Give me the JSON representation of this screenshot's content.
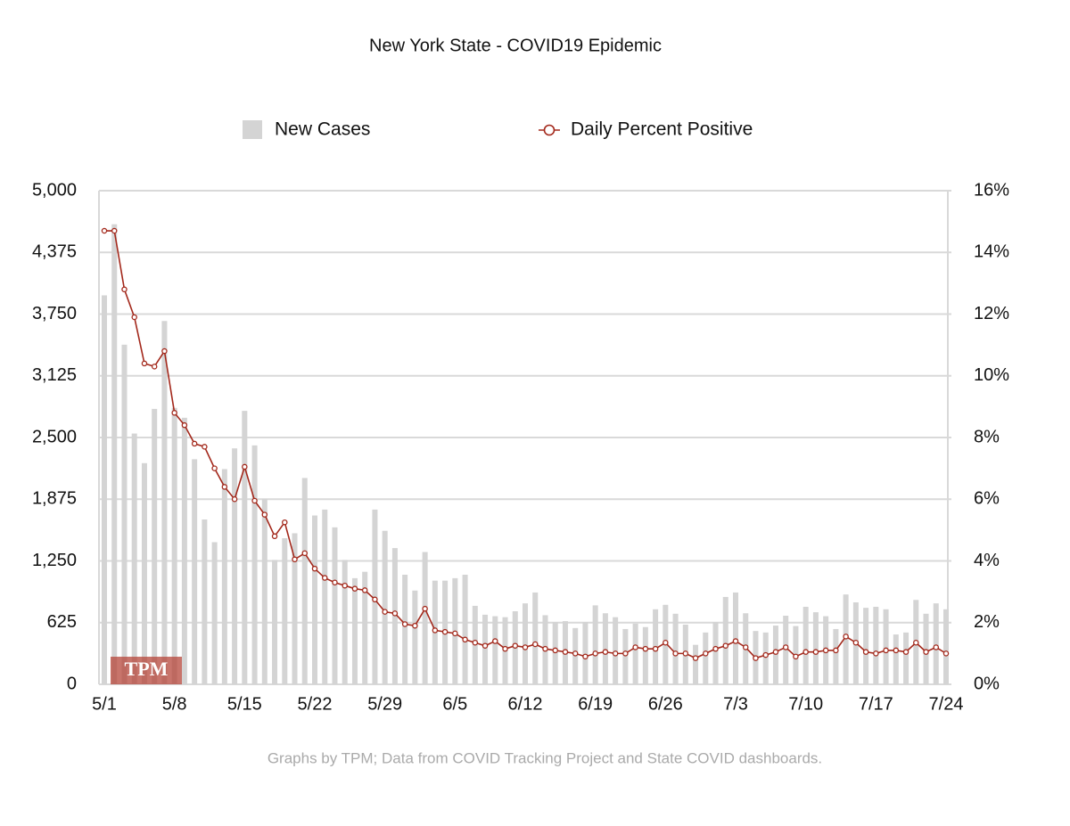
{
  "chart_data": {
    "type": "bar_line",
    "title": "New York State - COVID19 Epidemic",
    "note": "Graphs by TPM; Data from COVID Tracking Project and State COVID dashboards.",
    "watermark": "TPM",
    "legend": "top",
    "grid": true,
    "categories": [
      "5/1",
      null,
      null,
      null,
      null,
      null,
      null,
      "5/8",
      null,
      null,
      null,
      null,
      null,
      null,
      "5/15",
      null,
      null,
      null,
      null,
      null,
      null,
      "5/22",
      null,
      null,
      null,
      null,
      null,
      null,
      "5/29",
      null,
      null,
      null,
      null,
      null,
      null,
      "6/5",
      null,
      null,
      null,
      null,
      null,
      null,
      "6/12",
      null,
      null,
      null,
      null,
      null,
      null,
      "6/19",
      null,
      null,
      null,
      null,
      null,
      null,
      "6/26",
      null,
      null,
      null,
      null,
      null,
      null,
      "7/3",
      null,
      null,
      null,
      null,
      null,
      null,
      "7/10",
      null,
      null,
      null,
      null,
      null,
      null,
      "7/17",
      null,
      null,
      null,
      null,
      null,
      null,
      "7/24"
    ],
    "series": [
      {
        "name": "New Cases",
        "type": "bar",
        "color": "#d4d4d4",
        "axis": "y",
        "values": [
          3940,
          4660,
          3440,
          2540,
          2240,
          2790,
          3680,
          2800,
          2700,
          2280,
          1670,
          1440,
          2180,
          2390,
          2770,
          2420,
          1880,
          1260,
          1480,
          1530,
          2090,
          1710,
          1770,
          1590,
          1260,
          1075,
          1140,
          1770,
          1555,
          1380,
          1110,
          950,
          1340,
          1050,
          1050,
          1075,
          1110,
          795,
          705,
          690,
          680,
          740,
          820,
          930,
          700,
          630,
          640,
          570,
          630,
          800,
          720,
          680,
          560,
          615,
          580,
          760,
          805,
          715,
          605,
          400,
          525,
          630,
          885,
          930,
          720,
          540,
          525,
          595,
          695,
          590,
          785,
          730,
          690,
          560,
          910,
          830,
          775,
          785,
          760,
          505,
          525,
          855,
          715,
          820,
          760
        ]
      },
      {
        "name": "Daily Percent Positive",
        "type": "line",
        "color": "#a3281b",
        "axis": "y2",
        "values": [
          14.7,
          14.7,
          12.8,
          11.9,
          10.4,
          10.3,
          10.8,
          8.8,
          8.4,
          7.8,
          7.7,
          7.0,
          6.4,
          6.0,
          7.05,
          5.95,
          5.5,
          4.8,
          5.25,
          4.05,
          4.25,
          3.75,
          3.45,
          3.3,
          3.2,
          3.1,
          3.05,
          2.75,
          2.35,
          2.3,
          1.95,
          1.9,
          2.45,
          1.75,
          1.7,
          1.65,
          1.45,
          1.35,
          1.25,
          1.4,
          1.15,
          1.25,
          1.2,
          1.3,
          1.15,
          1.1,
          1.05,
          1.0,
          0.9,
          1.0,
          1.05,
          1.0,
          1.0,
          1.2,
          1.15,
          1.15,
          1.35,
          1.0,
          1.0,
          0.85,
          1.0,
          1.15,
          1.25,
          1.4,
          1.2,
          0.85,
          0.95,
          1.05,
          1.2,
          0.9,
          1.05,
          1.05,
          1.1,
          1.1,
          1.55,
          1.35,
          1.05,
          1.0,
          1.1,
          1.1,
          1.05,
          1.35,
          1.05,
          1.2,
          1.0
        ]
      }
    ],
    "ylim": [
      0,
      5000
    ],
    "yticks": [
      0,
      625,
      {
        "value": 1250,
        "label": "1,250"
      },
      {
        "value": 1875,
        "label": "1,875"
      },
      {
        "value": 2500,
        "label": "2,500"
      },
      {
        "value": 3125,
        "label": "3,125"
      },
      {
        "value": 3750,
        "label": "3,750"
      },
      {
        "value": 4375,
        "label": "4,375"
      },
      {
        "value": 5000,
        "label": "5,000"
      }
    ],
    "y2lim": [
      0,
      16
    ],
    "y2ticks": [
      {
        "value": 0,
        "label": "0%"
      },
      {
        "value": 2,
        "label": "2%"
      },
      {
        "value": 4,
        "label": "4%"
      },
      {
        "value": 6,
        "label": "6%"
      },
      {
        "value": 8,
        "label": "8%"
      },
      {
        "value": 10,
        "label": "10%"
      },
      {
        "value": 12,
        "label": "12%"
      },
      {
        "value": 14,
        "label": "14%"
      },
      {
        "value": 16,
        "label": "16%"
      }
    ]
  }
}
